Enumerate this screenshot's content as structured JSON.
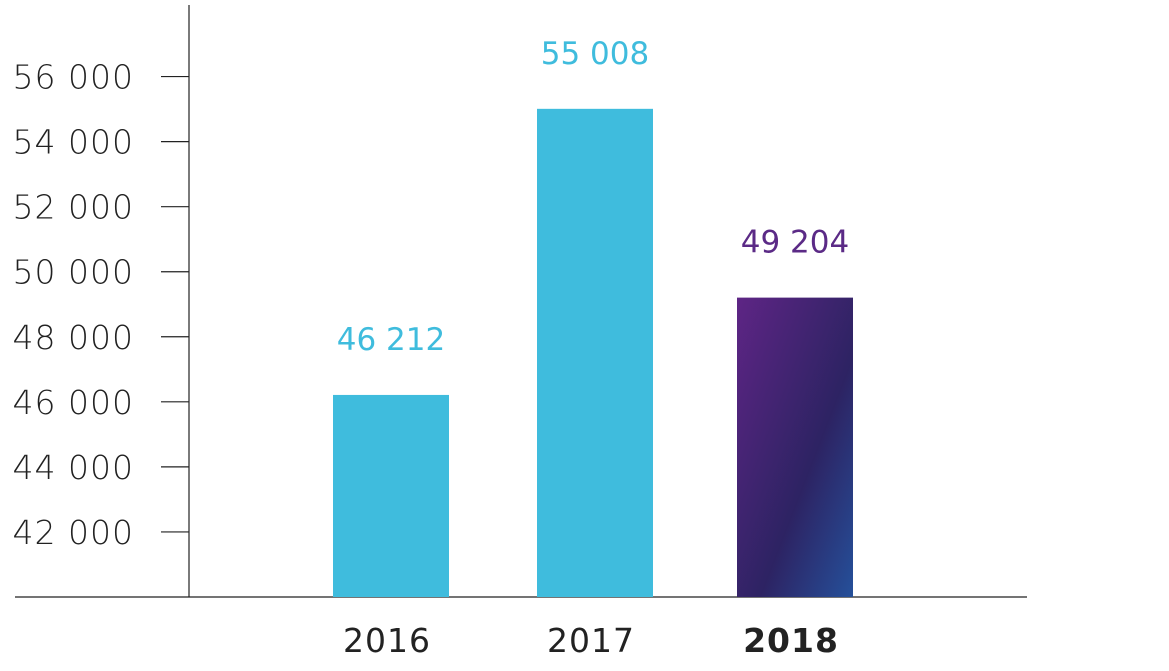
{
  "chart_data": {
    "type": "bar",
    "title": "",
    "xlabel": "",
    "ylabel": "",
    "categories": [
      "2016",
      "2017",
      "2018"
    ],
    "values": [
      46212,
      55008,
      49204
    ],
    "value_labels": [
      "46 212",
      "55 008",
      "49 204"
    ],
    "highlight_index": 2,
    "ylim": [
      40000,
      58200
    ],
    "yticks": [
      42000,
      44000,
      46000,
      48000,
      50000,
      52000,
      54000,
      56000
    ],
    "ytick_labels": [
      "42 000",
      "44 000",
      "46 000",
      "48 000",
      "50 000",
      "52 000",
      "54 000",
      "56 000"
    ],
    "grid": false,
    "colors": {
      "bar": "#3fbcdd",
      "highlight_gradient": [
        "#5e2585",
        "#2d2363",
        "#25509a"
      ],
      "highlight_label": "#5b2a86",
      "axis": "#222222"
    }
  }
}
